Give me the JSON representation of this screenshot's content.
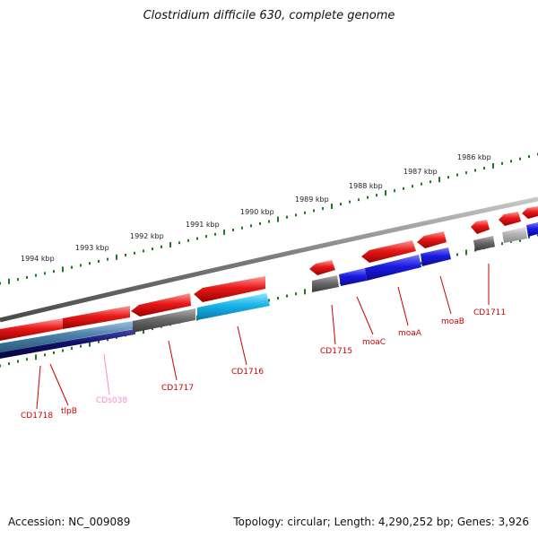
{
  "title": "Clostridium difficile 630, complete genome",
  "footer": {
    "accession": "Accession: NC_009089",
    "summary": "Topology: circular; Length: 4,290,252 bp; Genes: 3,926"
  },
  "colors": {
    "forward_cds": "#e81818",
    "reverse_gray": "#6a6a6a",
    "reverse_cyan": "#18b4e8",
    "reverse_blue": "#1a1ae0",
    "reverse_navy": "#10106a",
    "reverse_steel": "#4a7fa8",
    "light_gray": "#b4b4b4",
    "tick": "#1e7a1e",
    "backbone": "#7a7a7a",
    "label": "#cc0000",
    "pseudo_label": "#ff88cc"
  },
  "kbp_ticks": [
    {
      "id": "1994",
      "text": "1994 kbp"
    },
    {
      "id": "1993",
      "text": "1993 kbp"
    },
    {
      "id": "1992",
      "text": "1992 kbp"
    },
    {
      "id": "1991",
      "text": "1991 kbp"
    },
    {
      "id": "1990",
      "text": "1990 kbp"
    },
    {
      "id": "1989",
      "text": "1989 kbp"
    },
    {
      "id": "1988",
      "text": "1988 kbp"
    },
    {
      "id": "1987",
      "text": "1987 kbp"
    },
    {
      "id": "1986",
      "text": "1986 kbp"
    }
  ],
  "gene_labels": [
    {
      "id": "CD1718",
      "text": "CD1718",
      "kind": "gene"
    },
    {
      "id": "tlpB",
      "text": "tlpB",
      "kind": "gene"
    },
    {
      "id": "CDs038",
      "text": "CDs038",
      "kind": "pseudo"
    },
    {
      "id": "CD1717",
      "text": "CD1717",
      "kind": "gene"
    },
    {
      "id": "CD1716",
      "text": "CD1716",
      "kind": "gene"
    },
    {
      "id": "CD1715",
      "text": "CD1715",
      "kind": "gene"
    },
    {
      "id": "moaC",
      "text": "moaC",
      "kind": "gene"
    },
    {
      "id": "moaA",
      "text": "moaA",
      "kind": "gene"
    },
    {
      "id": "moaB",
      "text": "moaB",
      "kind": "gene"
    },
    {
      "id": "CD1711",
      "text": "CD1711",
      "kind": "gene"
    }
  ]
}
